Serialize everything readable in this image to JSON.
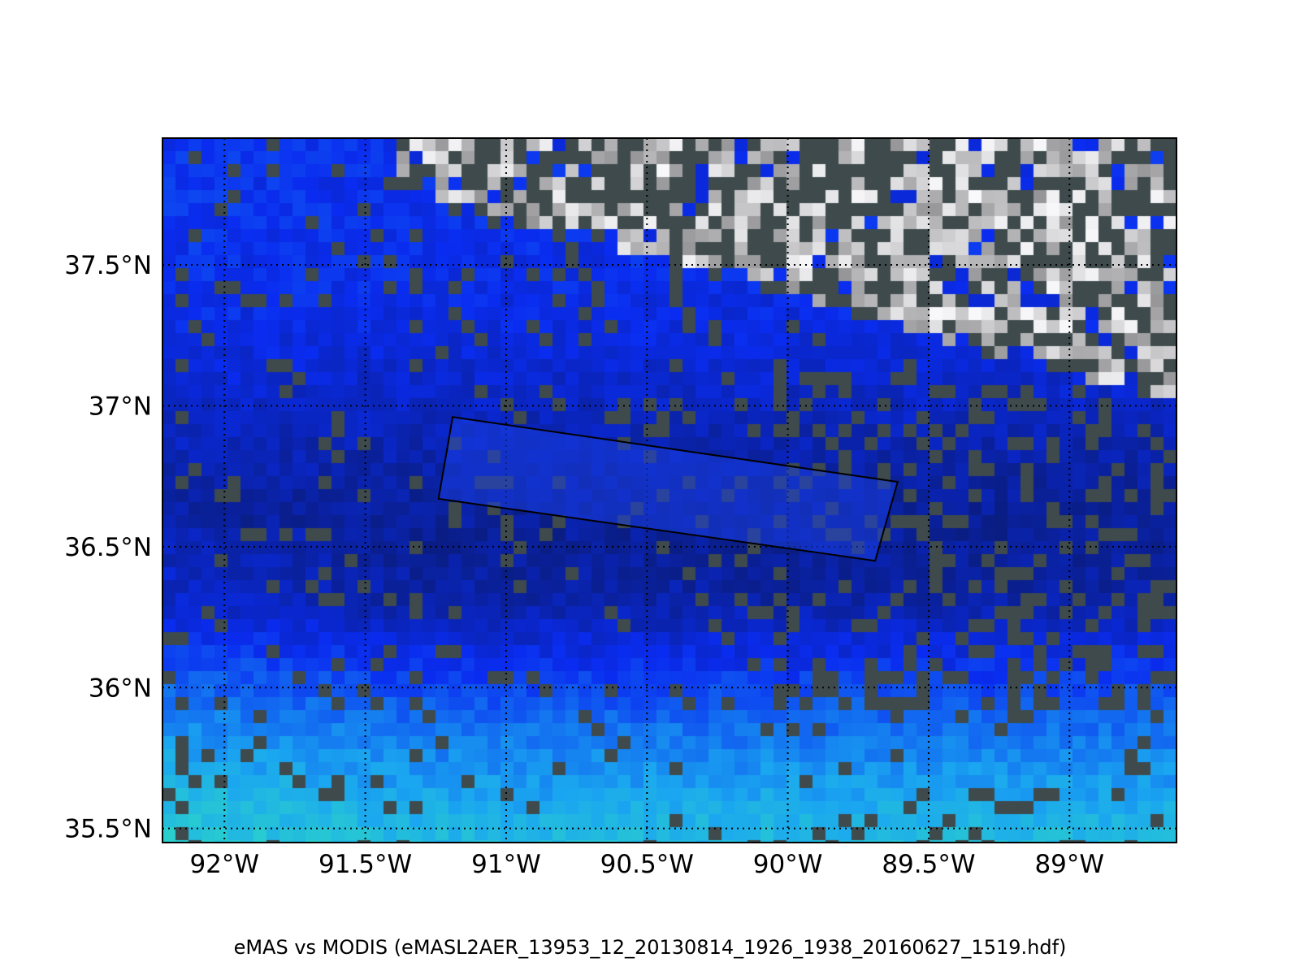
{
  "figure": {
    "caption": "eMAS vs MODIS (eMASL2AER_13953_12_20130814_1926_1938_20160627_1519.hdf)"
  },
  "map": {
    "lon_range": [
      -92.22,
      -88.62
    ],
    "lat_range": [
      35.45,
      37.95
    ],
    "lon_ticks": [
      {
        "value": -92.0,
        "label": "92°W"
      },
      {
        "value": -91.5,
        "label": "91.5°W"
      },
      {
        "value": -91.0,
        "label": "91°W"
      },
      {
        "value": -90.5,
        "label": "90.5°W"
      },
      {
        "value": -90.0,
        "label": "90°W"
      },
      {
        "value": -89.5,
        "label": "89.5°W"
      },
      {
        "value": -89.0,
        "label": "89°W"
      }
    ],
    "lat_ticks": [
      {
        "value": 37.5,
        "label": "37.5°N"
      },
      {
        "value": 37.0,
        "label": "37°N"
      },
      {
        "value": 36.5,
        "label": "36.5°N"
      },
      {
        "value": 36.0,
        "label": "36°N"
      },
      {
        "value": 35.5,
        "label": "35.5°N"
      }
    ],
    "gridlines": "dotted",
    "emas_swath_corners": [
      [
        -91.19,
        36.96
      ],
      [
        -89.61,
        36.73
      ],
      [
        -89.69,
        36.45
      ],
      [
        -91.24,
        36.67
      ]
    ],
    "colors": {
      "aod_low": "#0a1a6e",
      "aod_mid": "#0a2cf0",
      "aod_high": "#1aa6f0",
      "aod_max": "#33e8b8",
      "cloud": "#dcdcdc",
      "mask": "#3e4a4c"
    }
  }
}
